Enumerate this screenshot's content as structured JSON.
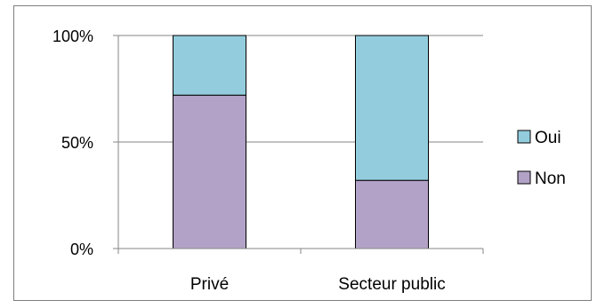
{
  "chart_data": {
    "type": "bar",
    "stacked": true,
    "categories": [
      "Privé",
      "Secteur public"
    ],
    "series": [
      {
        "name": "Non",
        "values": [
          72,
          32
        ],
        "color": "#b3a2c7"
      },
      {
        "name": "Oui",
        "values": [
          28,
          68
        ],
        "color": "#93cddd"
      }
    ],
    "y_ticks": [
      "0%",
      "50%",
      "100%"
    ],
    "ylim": [
      0,
      100
    ],
    "grid": true,
    "legend_position": "right"
  }
}
